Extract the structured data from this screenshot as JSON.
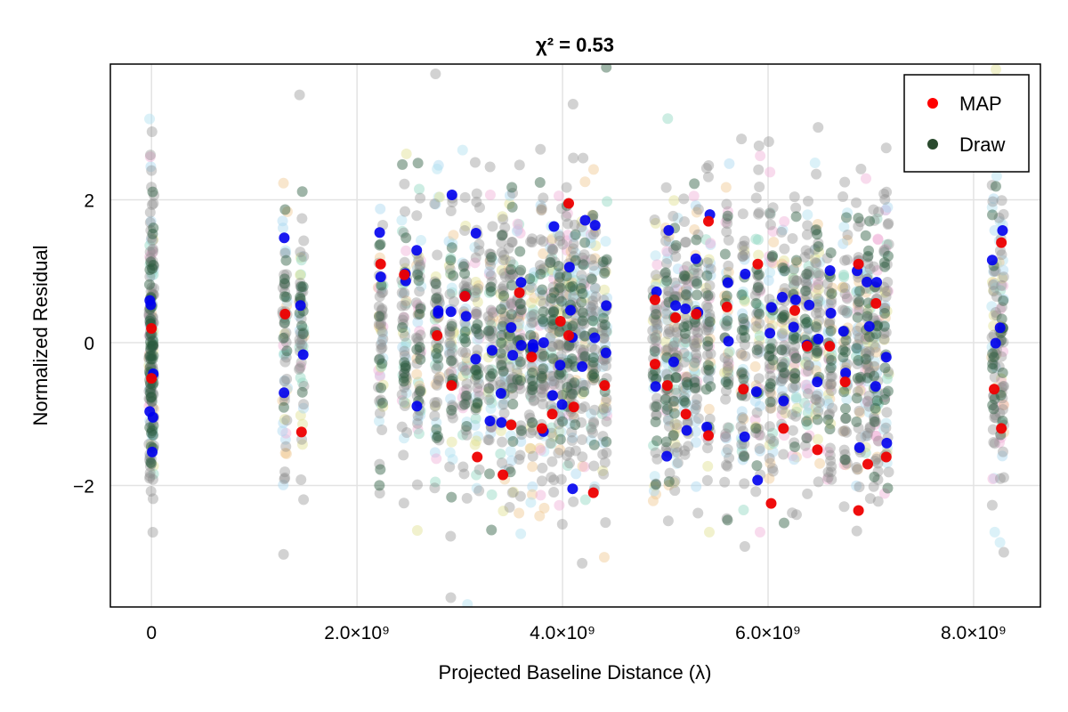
{
  "chart_data": {
    "type": "scatter",
    "title": "χ² = 0.53",
    "xlabel": "Projected Baseline Distance (λ)",
    "ylabel": "Normalized Residual",
    "xlim": [
      -400000000,
      8650000000
    ],
    "ylim": [
      -3.7,
      3.9
    ],
    "xticks": [
      0,
      2000000000,
      4000000000,
      6000000000,
      8000000000
    ],
    "xtick_labels": [
      "0",
      "2.0×10⁹",
      "4.0×10⁹",
      "6.0×10⁹",
      "8.0×10⁹"
    ],
    "yticks": [
      -2,
      0,
      2
    ],
    "ytick_labels": [
      "−2",
      "0",
      "2"
    ],
    "grid": true,
    "legend_position": "top-right",
    "legend": [
      {
        "label": "MAP",
        "color": "#ff0000"
      },
      {
        "label": "Draw",
        "color": "#2a4a2e"
      }
    ],
    "baseline_clusters_x": [
      0,
      1300000000,
      1460000000,
      2230000000,
      2460000000,
      2600000000,
      2780000000,
      2920000000,
      3050000000,
      3170000000,
      3300000000,
      3420000000,
      3500000000,
      3580000000,
      3700000000,
      3800000000,
      3900000000,
      3980000000,
      4060000000,
      4110000000,
      4200000000,
      4300000000,
      4410000000,
      4900000000,
      5020000000,
      5100000000,
      5200000000,
      5300000000,
      5420000000,
      5600000000,
      5760000000,
      5900000000,
      6030000000,
      6150000000,
      6260000000,
      6380000000,
      6480000000,
      6600000000,
      6750000000,
      6880000000,
      6970000000,
      7050000000,
      7150000000,
      8200000000,
      8270000000
    ],
    "map_points": [
      [
        2230000000,
        1.1
      ],
      [
        2460000000,
        0.95
      ],
      [
        2780000000,
        0.1
      ],
      [
        2920000000,
        -0.6
      ],
      [
        3050000000,
        0.65
      ],
      [
        3170000000,
        -1.6
      ],
      [
        3420000000,
        -1.85
      ],
      [
        3500000000,
        -1.15
      ],
      [
        3580000000,
        0.7
      ],
      [
        3700000000,
        -0.2
      ],
      [
        3800000000,
        -1.2
      ],
      [
        3900000000,
        -1.0
      ],
      [
        3980000000,
        0.3
      ],
      [
        4060000000,
        1.95
      ],
      [
        4110000000,
        -0.9
      ],
      [
        4300000000,
        -2.1
      ],
      [
        4410000000,
        -0.6
      ],
      [
        4900000000,
        -0.3
      ],
      [
        4900000000,
        0.6
      ],
      [
        5020000000,
        -0.6
      ],
      [
        5100000000,
        0.35
      ],
      [
        5200000000,
        -1.0
      ],
      [
        5300000000,
        0.4
      ],
      [
        5420000000,
        1.7
      ],
      [
        5420000000,
        -1.3
      ],
      [
        5600000000,
        0.5
      ],
      [
        5760000000,
        -0.65
      ],
      [
        5900000000,
        1.1
      ],
      [
        6030000000,
        -2.25
      ],
      [
        6150000000,
        -1.2
      ],
      [
        6260000000,
        0.45
      ],
      [
        6380000000,
        -0.05
      ],
      [
        6480000000,
        -1.5
      ],
      [
        6600000000,
        -0.05
      ],
      [
        6750000000,
        -0.55
      ],
      [
        6880000000,
        -2.35
      ],
      [
        6880000000,
        1.1
      ],
      [
        6970000000,
        -1.7
      ],
      [
        7050000000,
        0.55
      ],
      [
        7150000000,
        -1.6
      ],
      [
        1300000000,
        0.4
      ],
      [
        1460000000,
        -1.25
      ],
      [
        8200000000,
        -0.65
      ],
      [
        8270000000,
        1.4
      ],
      [
        8270000000,
        -1.2
      ],
      [
        0,
        0.2
      ],
      [
        0,
        -0.5
      ],
      [
        4060000000,
        0.1
      ]
    ]
  }
}
